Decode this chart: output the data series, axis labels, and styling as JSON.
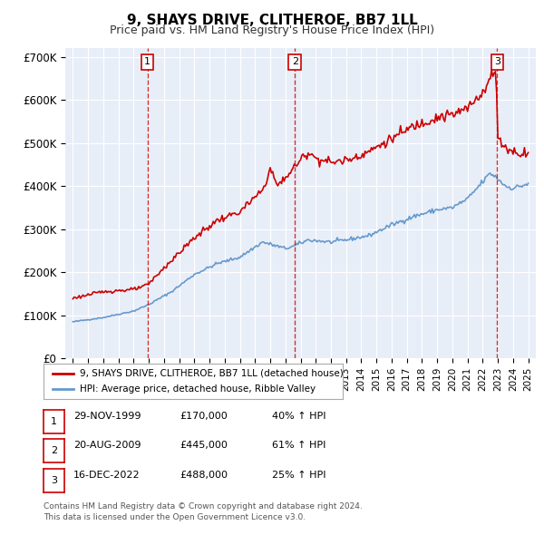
{
  "title": "9, SHAYS DRIVE, CLITHEROE, BB7 1LL",
  "subtitle": "Price paid vs. HM Land Registry's House Price Index (HPI)",
  "ylabel": "",
  "background_color": "#e8eef8",
  "plot_bg_color": "#e8eef8",
  "ylim": [
    0,
    720000
  ],
  "yticks": [
    0,
    100000,
    200000,
    300000,
    400000,
    500000,
    600000,
    700000
  ],
  "ytick_labels": [
    "£0",
    "£100K",
    "£200K",
    "£300K",
    "£400K",
    "£500K",
    "£600K",
    "£700K"
  ],
  "xlim_start": 1994.5,
  "xlim_end": 2025.5,
  "transactions": [
    {
      "date_num": 1999.91,
      "price": 170000,
      "label": "1"
    },
    {
      "date_num": 2009.63,
      "price": 445000,
      "label": "2"
    },
    {
      "date_num": 2022.96,
      "price": 488000,
      "label": "3"
    }
  ],
  "legend_line1": "9, SHAYS DRIVE, CLITHEROE, BB7 1LL (detached house)",
  "legend_line2": "HPI: Average price, detached house, Ribble Valley",
  "table_rows": [
    [
      "1",
      "29-NOV-1999",
      "£170,000",
      "40% ↑ HPI"
    ],
    [
      "2",
      "20-AUG-2009",
      "£445,000",
      "61% ↑ HPI"
    ],
    [
      "3",
      "16-DEC-2022",
      "£488,000",
      "25% ↑ HPI"
    ]
  ],
  "footer": "Contains HM Land Registry data © Crown copyright and database right 2024.\nThis data is licensed under the Open Government Licence v3.0.",
  "red_color": "#cc0000",
  "blue_color": "#6699cc",
  "vline_color": "#cc0000"
}
